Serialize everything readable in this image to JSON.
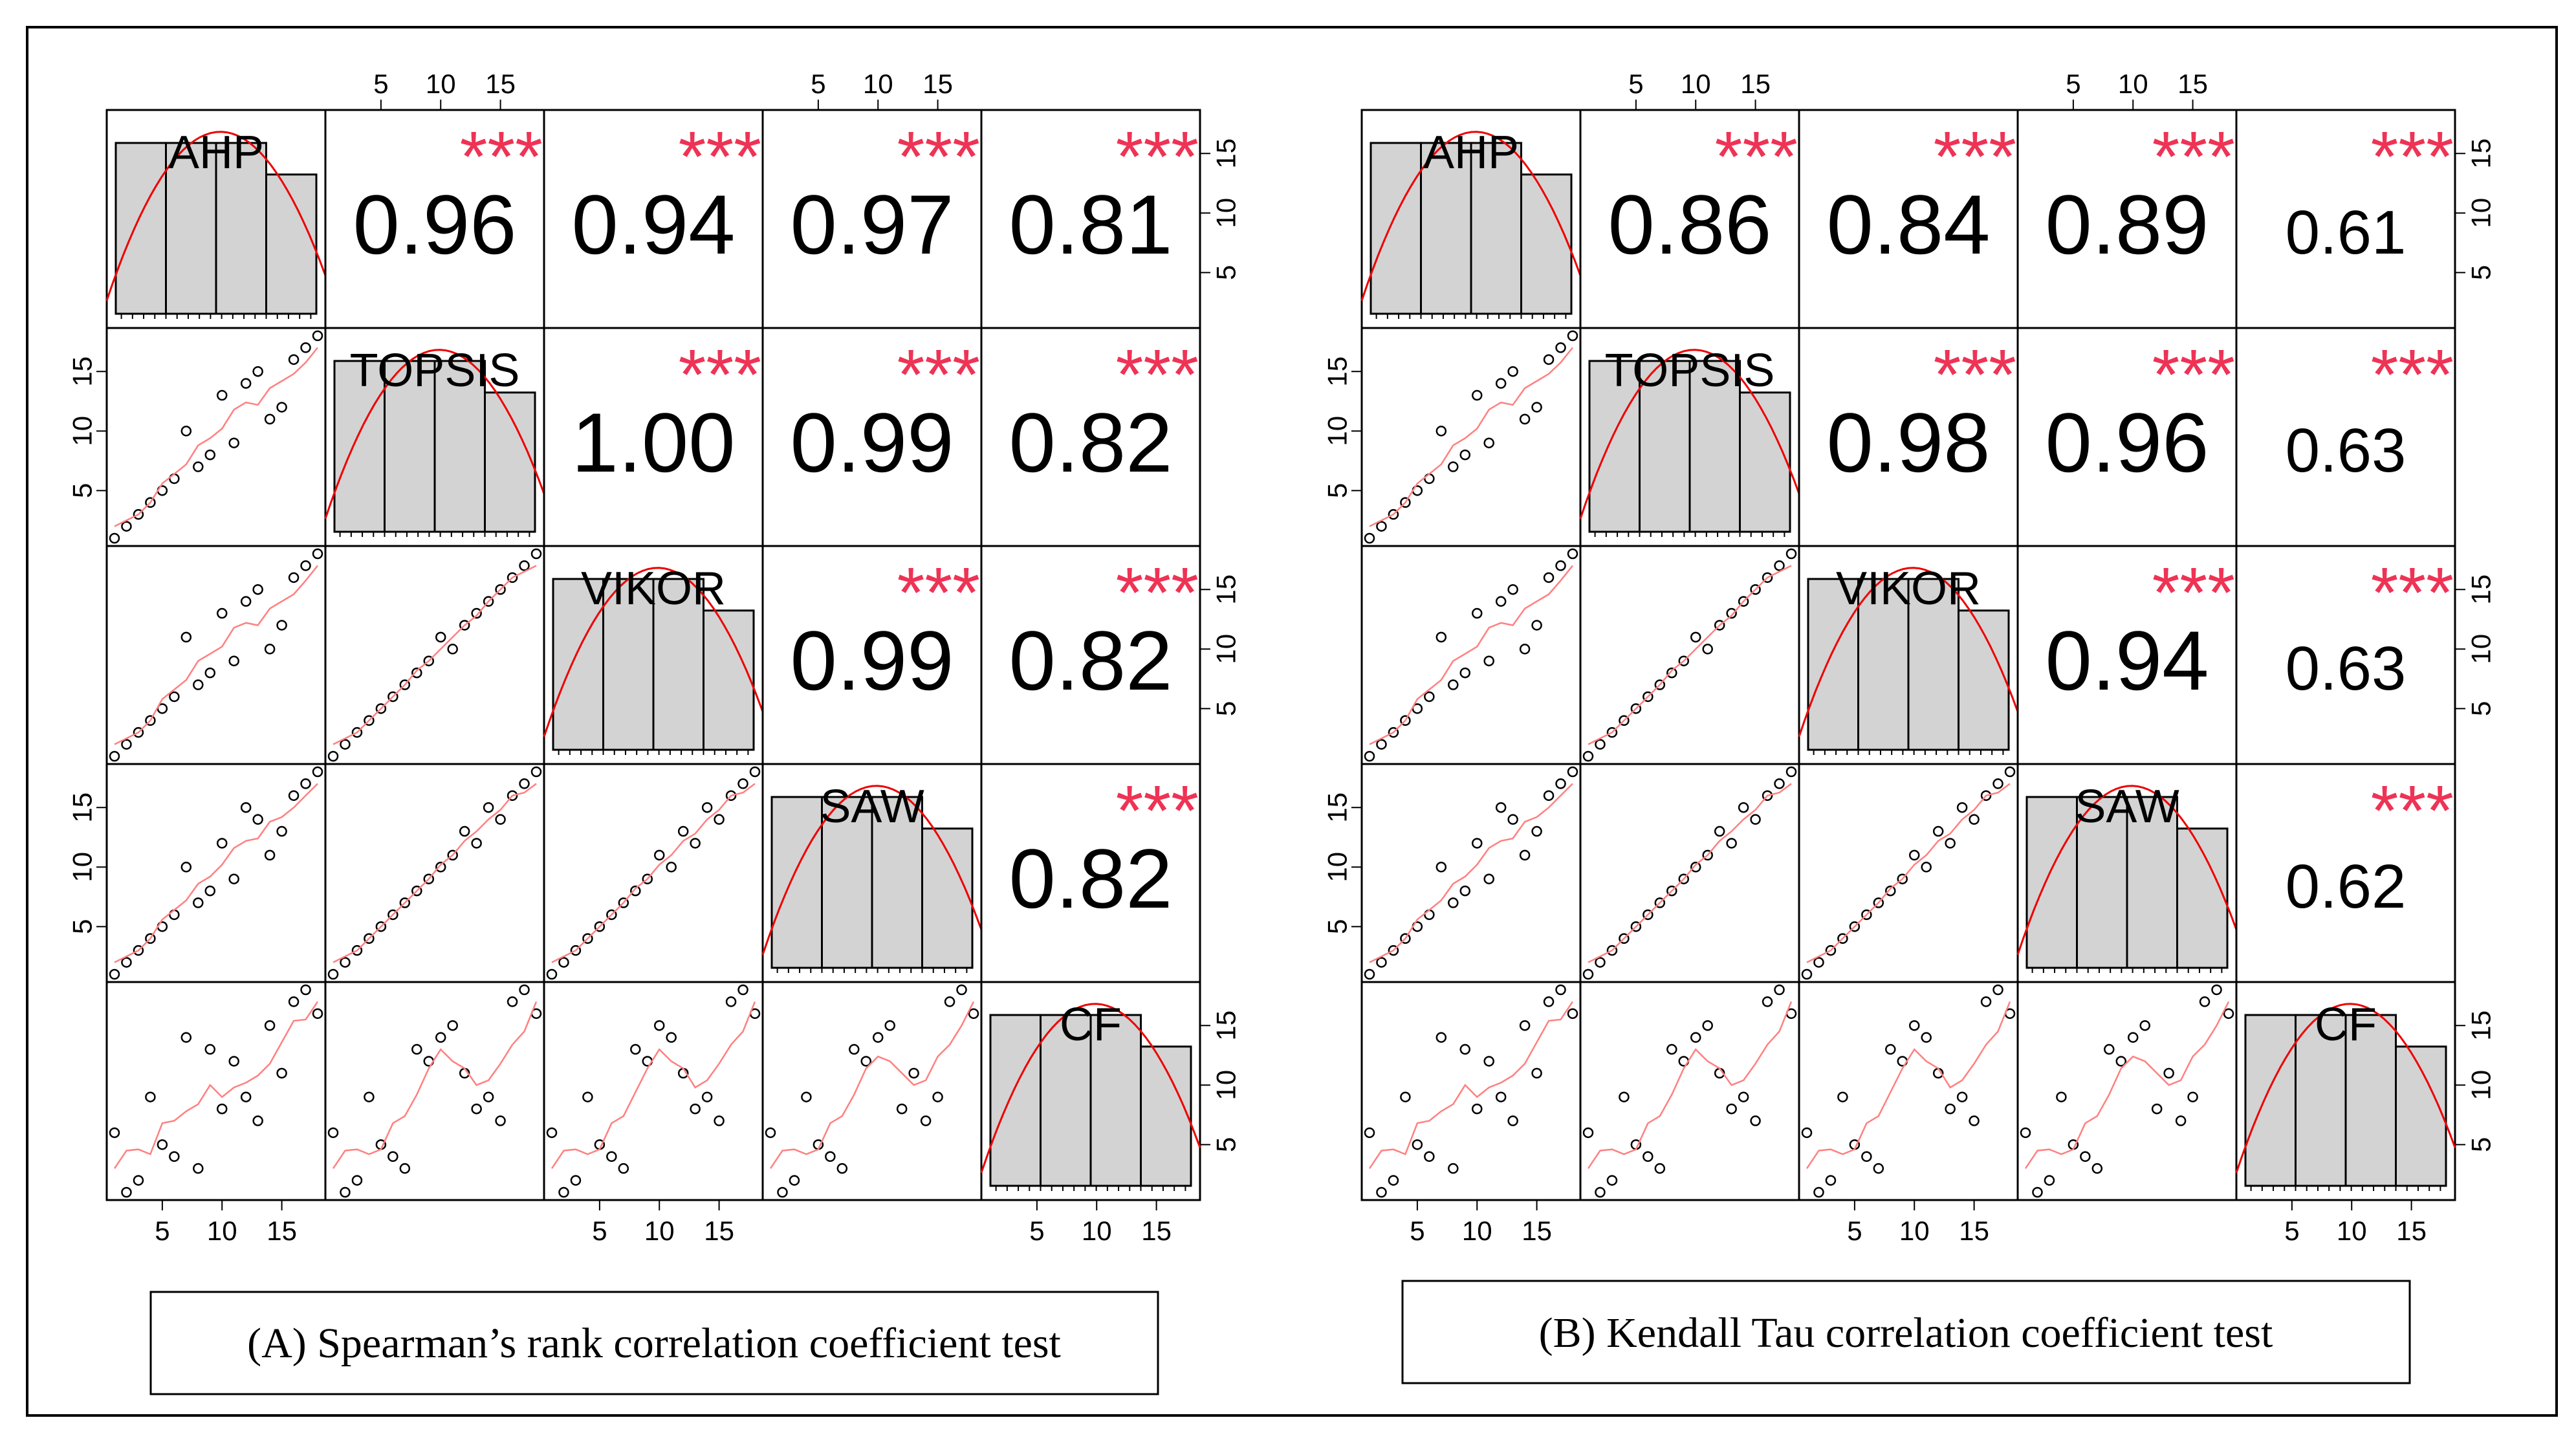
{
  "chart_data": [
    {
      "type": "scatter-matrix",
      "method": "Spearman",
      "variables": [
        "AHP",
        "TOPSIS",
        "VIKOR",
        "SAW",
        "CF"
      ],
      "axis_ticks": [
        5,
        10,
        15
      ],
      "axis_range": [
        1,
        18
      ],
      "significance": "***",
      "correlations": [
        [
          "",
          "0.96",
          "0.94",
          "0.97",
          "0.81"
        ],
        [
          "",
          "",
          "1.00",
          "0.99",
          "0.82"
        ],
        [
          "",
          "",
          "",
          "0.99",
          "0.82"
        ],
        [
          "",
          "",
          "",
          "",
          "0.82"
        ],
        [
          "",
          "",
          "",
          "",
          ""
        ]
      ],
      "caption": "(A) Spearman’s rank correlation coefficient test"
    },
    {
      "type": "scatter-matrix",
      "method": "Kendall",
      "variables": [
        "AHP",
        "TOPSIS",
        "VIKOR",
        "SAW",
        "CF"
      ],
      "axis_ticks": [
        5,
        10,
        15
      ],
      "axis_range": [
        1,
        18
      ],
      "significance": "***",
      "correlations": [
        [
          "",
          "0.86",
          "0.84",
          "0.89",
          "0.61"
        ],
        [
          "",
          "",
          "0.98",
          "0.96",
          "0.63"
        ],
        [
          "",
          "",
          "",
          "0.94",
          "0.63"
        ],
        [
          "",
          "",
          "",
          "",
          "0.62"
        ],
        [
          "",
          "",
          "",
          "",
          ""
        ]
      ],
      "caption": "(B) Kendall Tau correlation coefficient test"
    }
  ],
  "ranks": {
    "AHP": [
      1,
      2,
      3,
      4,
      5,
      6,
      7,
      8,
      9,
      10,
      11,
      12,
      13,
      14,
      15,
      16,
      17,
      18
    ],
    "TOPSIS": [
      1,
      2,
      3,
      4,
      5,
      6,
      10,
      7,
      8,
      13,
      9,
      14,
      15,
      11,
      12,
      16,
      17,
      18
    ],
    "VIKOR": [
      1,
      2,
      3,
      4,
      5,
      6,
      11,
      7,
      8,
      13,
      9,
      14,
      15,
      10,
      12,
      16,
      17,
      18
    ],
    "SAW": [
      1,
      2,
      3,
      4,
      5,
      6,
      10,
      7,
      8,
      12,
      9,
      15,
      14,
      11,
      13,
      16,
      17,
      18
    ],
    "CF": [
      6,
      1,
      2,
      9,
      5,
      4,
      14,
      3,
      13,
      8,
      12,
      9,
      7,
      15,
      11,
      17,
      18,
      16
    ]
  },
  "colors": {
    "accent": "#ee3355",
    "density": "#ee0000",
    "smooth": "#ff8080",
    "hist_fill": "#d3d3d3"
  }
}
